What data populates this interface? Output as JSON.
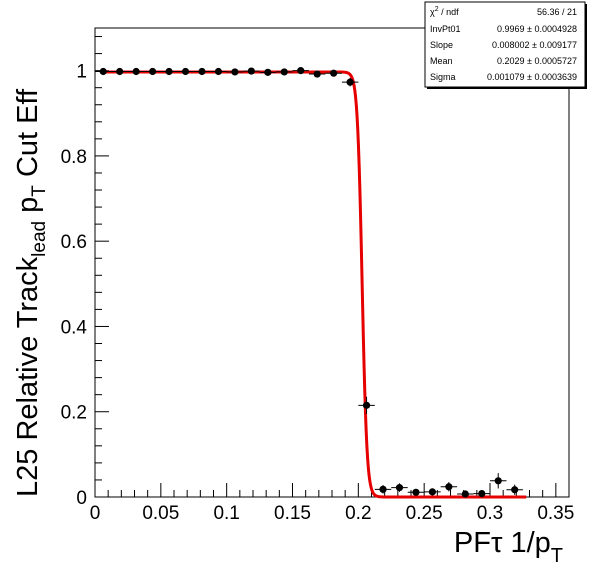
{
  "chart_data": {
    "type": "scatter",
    "x_axis": {
      "label_main": "PFτ 1/p",
      "label_sub": "T",
      "range": [
        0,
        0.36
      ],
      "ticks": [
        0,
        0.05,
        0.1,
        0.15,
        0.2,
        0.25,
        0.3,
        0.35
      ],
      "tick_labels": [
        "0",
        "0.05",
        "0.1",
        "0.15",
        "0.2",
        "0.25",
        "0.3",
        "0.35"
      ]
    },
    "y_axis": {
      "label_main": "L25 Relative Track",
      "label_sub_lead": "lead",
      "label_mid": " p",
      "label_sub_T": "T",
      "label_end": " Cut Eff",
      "range": [
        0,
        1.1
      ],
      "ticks": [
        0,
        0.2,
        0.4,
        0.6,
        0.8,
        1
      ],
      "tick_labels": [
        "0",
        "0.2",
        "0.4",
        "0.6",
        "0.8",
        "1"
      ]
    },
    "grid": false,
    "series": [
      {
        "kind": "data-points",
        "x_error": 0.00625,
        "points": [
          {
            "x": 0.00625,
            "y": 0.998,
            "yerr": 0.003
          },
          {
            "x": 0.01875,
            "y": 0.998,
            "yerr": 0.003
          },
          {
            "x": 0.03125,
            "y": 0.998,
            "yerr": 0.003
          },
          {
            "x": 0.04375,
            "y": 0.998,
            "yerr": 0.003
          },
          {
            "x": 0.05625,
            "y": 0.998,
            "yerr": 0.003
          },
          {
            "x": 0.06875,
            "y": 0.998,
            "yerr": 0.003
          },
          {
            "x": 0.08125,
            "y": 0.998,
            "yerr": 0.003
          },
          {
            "x": 0.09375,
            "y": 0.998,
            "yerr": 0.003
          },
          {
            "x": 0.10625,
            "y": 0.997,
            "yerr": 0.003
          },
          {
            "x": 0.11875,
            "y": 0.999,
            "yerr": 0.003
          },
          {
            "x": 0.13125,
            "y": 0.996,
            "yerr": 0.004
          },
          {
            "x": 0.14375,
            "y": 0.997,
            "yerr": 0.004
          },
          {
            "x": 0.15625,
            "y": 1.0,
            "yerr": 0.004
          },
          {
            "x": 0.16875,
            "y": 0.992,
            "yerr": 0.005
          },
          {
            "x": 0.18125,
            "y": 0.994,
            "yerr": 0.005
          },
          {
            "x": 0.19375,
            "y": 0.973,
            "yerr": 0.01
          },
          {
            "x": 0.20625,
            "y": 0.215,
            "yerr": 0.02
          },
          {
            "x": 0.21875,
            "y": 0.018,
            "yerr": 0.01
          },
          {
            "x": 0.23125,
            "y": 0.022,
            "yerr": 0.01
          },
          {
            "x": 0.24375,
            "y": 0.011,
            "yerr": 0.008
          },
          {
            "x": 0.25625,
            "y": 0.012,
            "yerr": 0.008
          },
          {
            "x": 0.26875,
            "y": 0.024,
            "yerr": 0.011
          },
          {
            "x": 0.28125,
            "y": 0.007,
            "yerr": 0.007
          },
          {
            "x": 0.29375,
            "y": 0.008,
            "yerr": 0.007
          },
          {
            "x": 0.30625,
            "y": 0.038,
            "yerr": 0.018
          },
          {
            "x": 0.31875,
            "y": 0.017,
            "yerr": 0.012
          }
        ]
      },
      {
        "kind": "fit-curve",
        "color": "#e60000",
        "x_start": 0.00625,
        "x_end": 0.3275,
        "params": {
          "InvPt01": 0.9969,
          "Slope": 0.008002,
          "Mean": 0.2029,
          "Sigma": 0.001079
        }
      }
    ],
    "stats_box": {
      "chi2_label": "χ",
      "chi2_sup": "2",
      "chi2_rest": " / ndf",
      "chi2_value": "56.36 / 21",
      "rows": [
        {
          "label": "InvPt01",
          "value": "0.9969 ± 0.0004928"
        },
        {
          "label": "Slope",
          "value": "0.008002 ± 0.009177"
        },
        {
          "label": "Mean",
          "value": "0.2029 ± 0.0005727"
        },
        {
          "label": "Sigma",
          "value": "0.001079 ± 0.0003639"
        }
      ]
    }
  }
}
